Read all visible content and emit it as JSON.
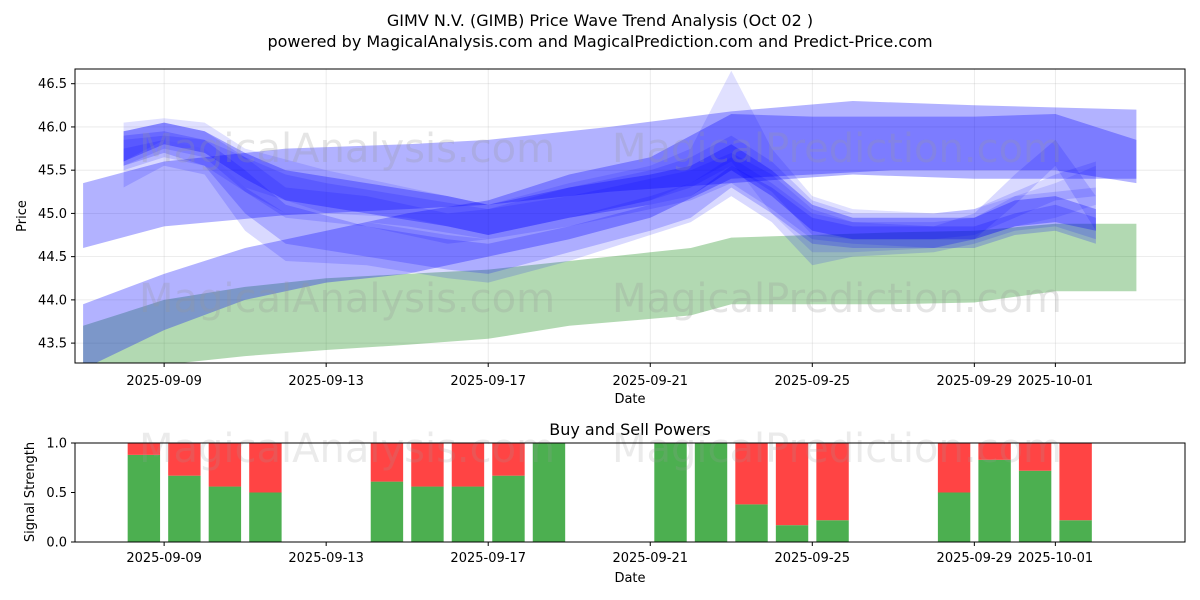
{
  "title_line1": "GIMV N.V. (GIMB) Price Wave Trend Analysis (Oct 02 )",
  "title_line2": "powered by MagicalAnalysis.com and MagicalPrediction.com and Predict-Price.com",
  "watermarks": [
    "MagicalAnalysis.com",
    "MagicalPrediction.com"
  ],
  "colors": {
    "band": "#0000ff",
    "green": "#008000",
    "buy": "#4caf50",
    "sell": "#ff4444"
  },
  "chart_data": [
    {
      "type": "area",
      "title": "",
      "xlabel": "Date",
      "ylabel": "Price",
      "x_ticks": [
        "2025-09-09",
        "2025-09-13",
        "2025-09-17",
        "2025-09-21",
        "2025-09-25",
        "2025-09-29",
        "2025-10-01"
      ],
      "x_tick_days": [
        9,
        13,
        17,
        21,
        25,
        29,
        31
      ],
      "y_ticks": [
        "43.5",
        "44.0",
        "44.5",
        "45.0",
        "45.5",
        "46.0",
        "46.5"
      ],
      "xlim": [
        6.8,
        34.2
      ],
      "ylim": [
        43.27,
        46.67
      ],
      "grid": true,
      "green_band": {
        "x": [
          7,
          9,
          11,
          13,
          15,
          17,
          19,
          21,
          22,
          23,
          25,
          27,
          29,
          31,
          33
        ],
        "upper": [
          43.7,
          44.0,
          44.15,
          44.25,
          44.3,
          44.35,
          44.45,
          44.55,
          44.6,
          44.72,
          44.75,
          44.78,
          44.8,
          44.88,
          44.88
        ],
        "lower": [
          43.0,
          43.25,
          43.35,
          43.42,
          43.48,
          43.55,
          43.7,
          43.78,
          43.82,
          43.95,
          43.95,
          43.95,
          43.97,
          44.1,
          44.1
        ]
      },
      "blue_bands": [
        {
          "x": [
            7,
            9,
            12,
            15,
            17,
            20,
            23,
            26,
            29,
            33
          ],
          "upper": [
            45.35,
            45.6,
            45.75,
            45.8,
            45.85,
            46.0,
            46.18,
            46.3,
            46.25,
            46.2
          ],
          "lower": [
            44.6,
            44.85,
            44.98,
            45.05,
            45.1,
            45.25,
            45.35,
            45.45,
            45.4,
            45.4
          ],
          "opacity": 0.3
        },
        {
          "x": [
            7,
            9,
            11,
            13,
            15,
            17,
            19,
            21,
            23,
            25,
            27,
            29,
            31,
            33
          ],
          "upper": [
            43.95,
            44.3,
            44.6,
            44.8,
            45.0,
            45.15,
            45.45,
            45.65,
            46.15,
            46.12,
            46.12,
            46.12,
            46.15,
            45.85
          ],
          "lower": [
            43.2,
            43.65,
            44.0,
            44.2,
            44.3,
            44.5,
            44.7,
            44.95,
            45.4,
            45.45,
            45.5,
            45.5,
            45.5,
            45.35
          ],
          "opacity": 0.3
        },
        {
          "x": [
            8,
            9,
            10,
            11,
            12,
            14,
            16,
            17,
            19,
            21,
            22,
            23,
            24,
            25,
            26,
            28,
            29,
            30,
            31,
            32
          ],
          "upper": [
            45.95,
            46.05,
            45.95,
            45.7,
            45.5,
            45.35,
            45.2,
            45.1,
            45.3,
            45.45,
            45.55,
            45.8,
            45.5,
            45.1,
            44.95,
            44.95,
            44.95,
            45.15,
            45.2,
            45.05
          ],
          "lower": [
            45.6,
            45.8,
            45.7,
            45.4,
            45.15,
            45.0,
            44.85,
            44.75,
            44.95,
            45.1,
            45.2,
            45.5,
            45.2,
            44.8,
            44.7,
            44.7,
            44.7,
            44.85,
            44.9,
            44.8
          ],
          "opacity": 0.3
        },
        {
          "x": [
            8,
            9,
            10,
            11,
            12,
            14,
            16,
            17,
            19,
            21,
            22,
            23,
            24,
            25,
            26,
            28,
            29,
            30,
            31,
            32
          ],
          "upper": [
            45.9,
            45.95,
            45.85,
            45.5,
            45.1,
            44.85,
            44.7,
            44.65,
            44.85,
            45.1,
            45.2,
            45.55,
            45.3,
            44.95,
            44.85,
            44.85,
            44.85,
            45.0,
            45.1,
            44.95
          ],
          "lower": [
            45.55,
            45.7,
            45.55,
            45.0,
            44.65,
            44.5,
            44.35,
            44.3,
            44.55,
            44.8,
            44.95,
            45.3,
            45.0,
            44.65,
            44.6,
            44.6,
            44.6,
            44.75,
            44.8,
            44.65
          ],
          "opacity": 0.2
        },
        {
          "x": [
            8,
            9,
            10,
            11,
            13,
            15,
            17,
            19,
            21,
            22,
            23,
            24,
            25,
            26,
            28,
            29,
            30,
            31,
            32
          ],
          "upper": [
            46.05,
            46.1,
            46.05,
            45.75,
            45.5,
            45.3,
            45.1,
            45.35,
            45.55,
            45.75,
            46.65,
            45.75,
            45.2,
            45.05,
            45.0,
            45.05,
            45.2,
            45.35,
            45.55
          ],
          "lower": [
            45.6,
            45.85,
            45.75,
            45.3,
            45.0,
            44.95,
            44.75,
            44.95,
            45.15,
            45.35,
            45.6,
            45.0,
            44.55,
            44.55,
            44.6,
            44.7,
            44.85,
            44.95,
            45.1
          ],
          "opacity": 0.12
        },
        {
          "x": [
            8,
            9,
            10,
            11,
            12,
            14,
            16,
            17,
            19,
            21,
            22,
            23,
            24,
            25,
            26,
            28,
            29,
            30,
            31,
            32
          ],
          "upper": [
            45.75,
            45.85,
            45.75,
            45.3,
            45.0,
            44.9,
            44.75,
            44.7,
            44.95,
            45.2,
            45.35,
            45.65,
            45.35,
            45.0,
            44.9,
            44.9,
            44.95,
            45.2,
            45.25,
            45.3
          ],
          "lower": [
            45.3,
            45.55,
            45.45,
            44.8,
            44.45,
            44.4,
            44.25,
            44.2,
            44.45,
            44.75,
            44.9,
            45.2,
            44.9,
            44.4,
            44.5,
            44.55,
            44.65,
            44.8,
            44.85,
            44.7
          ],
          "opacity": 0.15
        },
        {
          "x": [
            8,
            9,
            10,
            11,
            12,
            13,
            15,
            17,
            19,
            21,
            22,
            23,
            24,
            25,
            26,
            28,
            29,
            30,
            31,
            32
          ],
          "upper": [
            45.85,
            45.9,
            45.85,
            45.65,
            45.45,
            45.35,
            45.2,
            45.05,
            45.2,
            45.4,
            45.5,
            45.7,
            45.45,
            45.05,
            44.9,
            44.85,
            45.0,
            45.45,
            45.85,
            45.2
          ],
          "lower": [
            45.5,
            45.65,
            45.55,
            45.25,
            45.0,
            44.95,
            44.85,
            44.7,
            44.85,
            45.05,
            45.15,
            45.35,
            45.05,
            44.7,
            44.65,
            44.6,
            44.7,
            45.1,
            45.55,
            44.8
          ],
          "opacity": 0.15
        },
        {
          "x": [
            8,
            9,
            10,
            11,
            12,
            14,
            16,
            17,
            19,
            21,
            22,
            23,
            24,
            25,
            26,
            28,
            29,
            30,
            31,
            32
          ],
          "upper": [
            45.95,
            46.05,
            45.95,
            45.65,
            45.3,
            45.2,
            45.0,
            45.05,
            45.3,
            45.5,
            45.65,
            45.9,
            45.6,
            45.15,
            45.0,
            45.0,
            45.05,
            45.25,
            45.45,
            45.6
          ],
          "lower": [
            45.55,
            45.75,
            45.65,
            45.25,
            44.95,
            44.85,
            44.65,
            44.7,
            44.95,
            45.15,
            45.3,
            45.55,
            45.25,
            44.75,
            44.7,
            44.7,
            44.75,
            44.95,
            45.15,
            45.2
          ],
          "opacity": 0.15
        }
      ]
    },
    {
      "type": "bar",
      "title": "Buy and Sell Powers",
      "xlabel": "Date",
      "ylabel": "Signal Strength",
      "x_ticks": [
        "2025-09-09",
        "2025-09-13",
        "2025-09-17",
        "2025-09-21",
        "2025-09-25",
        "2025-09-29",
        "2025-10-01"
      ],
      "x_tick_days": [
        9,
        13,
        17,
        21,
        25,
        29,
        31
      ],
      "y_ticks": [
        "0.0",
        "0.5",
        "1.0"
      ],
      "xlim": [
        6.8,
        34.2
      ],
      "ylim": [
        0,
        1
      ],
      "days": [
        8.5,
        9.5,
        10.5,
        11.5,
        14.5,
        15.5,
        16.5,
        17.5,
        18.5,
        21.5,
        22.5,
        23.5,
        24.5,
        25.5,
        28.5,
        29.5,
        30.5,
        31.5
      ],
      "categories": [
        "2025-09-08",
        "2025-09-09",
        "2025-09-10",
        "2025-09-11",
        "2025-09-14",
        "2025-09-15",
        "2025-09-16",
        "2025-09-17",
        "2025-09-18",
        "2025-09-21",
        "2025-09-22",
        "2025-09-23",
        "2025-09-24",
        "2025-09-25",
        "2025-09-28",
        "2025-09-29",
        "2025-09-30",
        "2025-10-01"
      ],
      "series": [
        {
          "name": "Buy",
          "values": [
            0.88,
            0.67,
            0.56,
            0.5,
            0.61,
            0.56,
            0.56,
            0.67,
            1.0,
            1.0,
            1.0,
            0.38,
            0.17,
            0.22,
            0.5,
            0.83,
            0.72,
            0.22
          ]
        },
        {
          "name": "Sell",
          "values": [
            0.12,
            0.33,
            0.44,
            0.5,
            0.39,
            0.44,
            0.44,
            0.33,
            0.0,
            0.0,
            0.0,
            0.62,
            0.83,
            0.78,
            0.5,
            0.17,
            0.28,
            0.78
          ]
        }
      ]
    }
  ]
}
